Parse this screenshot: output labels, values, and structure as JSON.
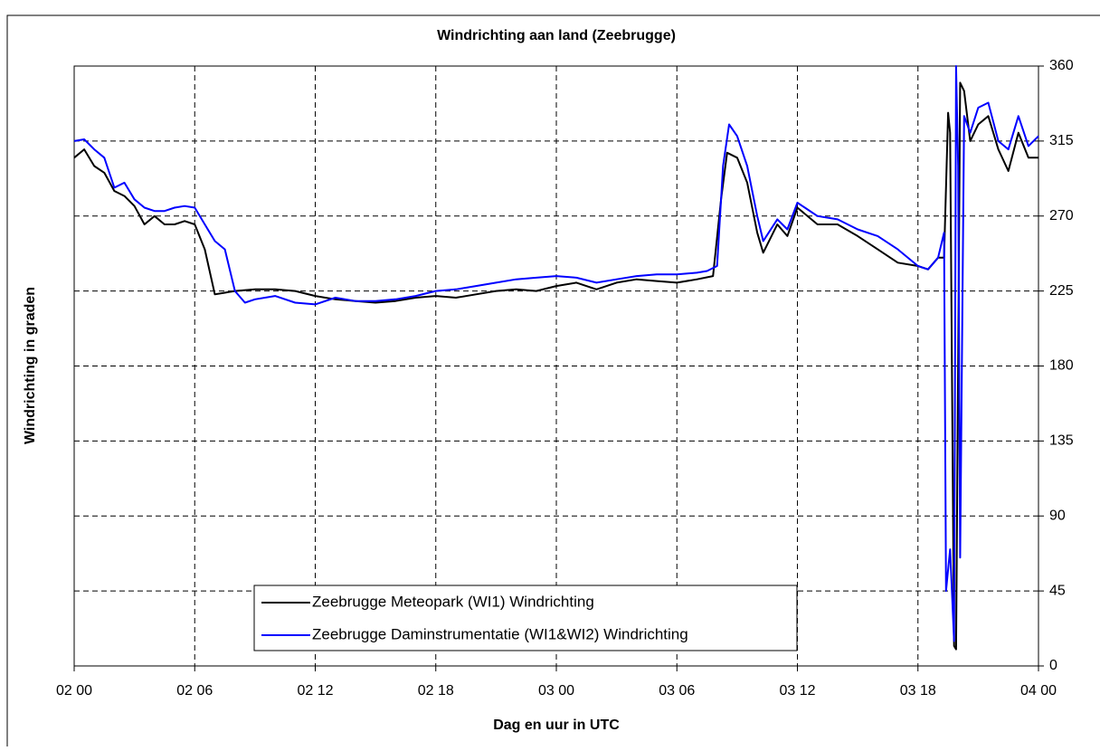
{
  "chart_data": {
    "type": "line",
    "title": "Windrichting aan land (Zeebrugge)",
    "xlabel": "Dag en uur in UTC",
    "ylabel": "Windrichting in graden",
    "xlim": [
      0,
      48
    ],
    "xticks": [
      {
        "value": 0,
        "label": "02 00"
      },
      {
        "value": 6,
        "label": "02 06"
      },
      {
        "value": 12,
        "label": "02 12"
      },
      {
        "value": 18,
        "label": "02 18"
      },
      {
        "value": 24,
        "label": "03 00"
      },
      {
        "value": 30,
        "label": "03 06"
      },
      {
        "value": 36,
        "label": "03 12"
      },
      {
        "value": 42,
        "label": "03 18"
      },
      {
        "value": 48,
        "label": "04 00"
      }
    ],
    "ylim": [
      0,
      360
    ],
    "yticks": [
      0,
      45,
      90,
      135,
      180,
      225,
      270,
      315,
      360
    ],
    "grid": true,
    "legend": "lower center",
    "series": [
      {
        "name": "Zeebrugge Meteopark (WI1) Windrichting",
        "color": "#000000",
        "x": [
          0,
          0.5,
          1,
          1.5,
          2,
          2.5,
          3,
          3.5,
          4,
          4.5,
          5,
          5.5,
          6,
          6.5,
          7,
          7.5,
          8,
          9,
          10,
          11,
          12,
          13,
          14,
          15,
          16,
          17,
          18,
          19,
          20,
          21,
          22,
          23,
          24,
          25,
          26,
          27,
          28,
          29,
          30,
          31,
          31.8,
          32.2,
          32.5,
          33,
          33.5,
          34,
          34.3,
          35,
          35.5,
          36,
          37,
          38,
          39,
          40,
          41,
          42,
          42.5,
          43,
          43.3,
          43.5,
          43.6,
          43.8,
          43.9,
          44.1,
          44.3,
          44.6,
          45,
          45.5,
          46,
          46.5,
          47,
          47.5,
          48
        ],
        "values": [
          305,
          310,
          300,
          296,
          285,
          282,
          276,
          265,
          270,
          265,
          265,
          267,
          265,
          250,
          223,
          224,
          225,
          226,
          226,
          225,
          222,
          220,
          219,
          218,
          219,
          221,
          222,
          221,
          223,
          225,
          226,
          225,
          228,
          230,
          226,
          230,
          232,
          231,
          230,
          232,
          234,
          280,
          308,
          305,
          290,
          260,
          248,
          265,
          258,
          275,
          265,
          265,
          258,
          250,
          242,
          240,
          238,
          245,
          245,
          332,
          320,
          12,
          10,
          350,
          345,
          315,
          325,
          330,
          310,
          297,
          320,
          305,
          305
        ]
      },
      {
        "name": "Zeebrugge Daminstrumentatie (WI1&WI2) Windrichting",
        "color": "#0000ff",
        "x": [
          0,
          0.5,
          1,
          1.5,
          2,
          2.5,
          3,
          3.5,
          4,
          4.5,
          5,
          5.5,
          6,
          6.5,
          7,
          7.5,
          8,
          8.5,
          9,
          10,
          11,
          12,
          13,
          14,
          15,
          16,
          17,
          18,
          19,
          20,
          21,
          22,
          23,
          24,
          25,
          26,
          27,
          28,
          29,
          30,
          31,
          31.5,
          32,
          32.3,
          32.6,
          33,
          33.5,
          34,
          34.3,
          35,
          35.5,
          36,
          37,
          38,
          39,
          40,
          41,
          42,
          42.5,
          43,
          43.3,
          43.4,
          43.6,
          43.8,
          43.9,
          44.0,
          44.1,
          44.3,
          44.6,
          45,
          45.5,
          46,
          46.5,
          47,
          47.5,
          48
        ],
        "values": [
          315,
          316,
          310,
          305,
          287,
          290,
          280,
          275,
          273,
          273,
          275,
          276,
          275,
          265,
          255,
          250,
          225,
          218,
          220,
          222,
          218,
          217,
          221,
          219,
          219,
          220,
          222,
          225,
          226,
          228,
          230,
          232,
          233,
          234,
          233,
          230,
          232,
          234,
          235,
          235,
          236,
          237,
          240,
          300,
          325,
          318,
          300,
          270,
          255,
          268,
          262,
          278,
          270,
          268,
          262,
          258,
          250,
          240,
          238,
          245,
          260,
          45,
          70,
          15,
          360,
          300,
          65,
          330,
          320,
          335,
          338,
          315,
          310,
          330,
          312,
          318
        ]
      }
    ]
  }
}
